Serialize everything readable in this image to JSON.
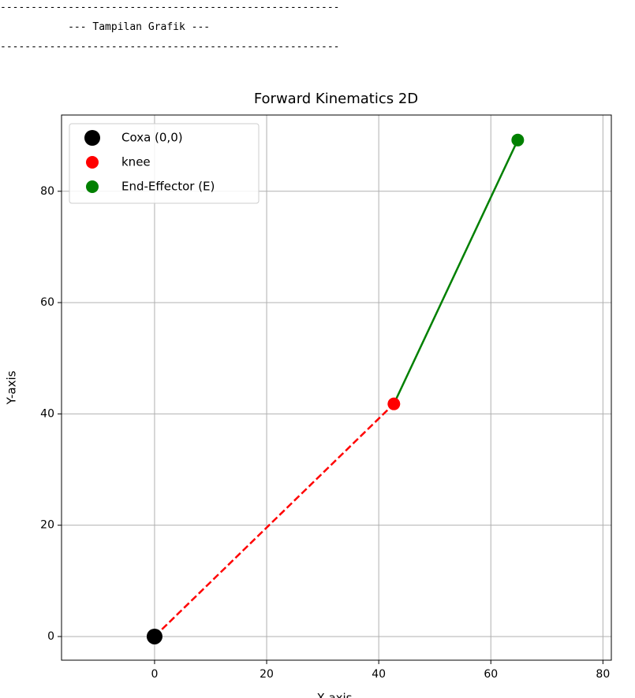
{
  "console": [
    "-------------------------------------------------------",
    "           --- Tampilan Grafik ---",
    "-------------------------------------------------------"
  ],
  "chart_data": {
    "type": "line",
    "title": "Forward Kinematics 2D",
    "x_label": "X-axis",
    "y_label": "Y-axis",
    "series": [
      {
        "name": "Coxa (0,0)",
        "color": "black",
        "marker_size": 10,
        "x": [
          0
        ],
        "values": [
          0
        ]
      },
      {
        "name": "knee",
        "color": "red",
        "marker_size": 8,
        "x": [
          42.7
        ],
        "values": [
          41.8
        ]
      },
      {
        "name": "End-Effector (E)",
        "color": "green",
        "marker_size": 8,
        "x": [
          64.8
        ],
        "values": [
          89.2
        ]
      }
    ],
    "segment_colors": [
      "red",
      "green"
    ],
    "segment_styles": [
      "dashed",
      "solid"
    ],
    "xlim": [
      -16.6,
      81.5
    ],
    "ylim": [
      -4.25,
      93.7
    ],
    "xticks": [
      0,
      20,
      40,
      60,
      80
    ],
    "yticks": [
      0,
      20,
      40,
      60,
      80
    ],
    "grid": true,
    "legend": "upper left"
  }
}
